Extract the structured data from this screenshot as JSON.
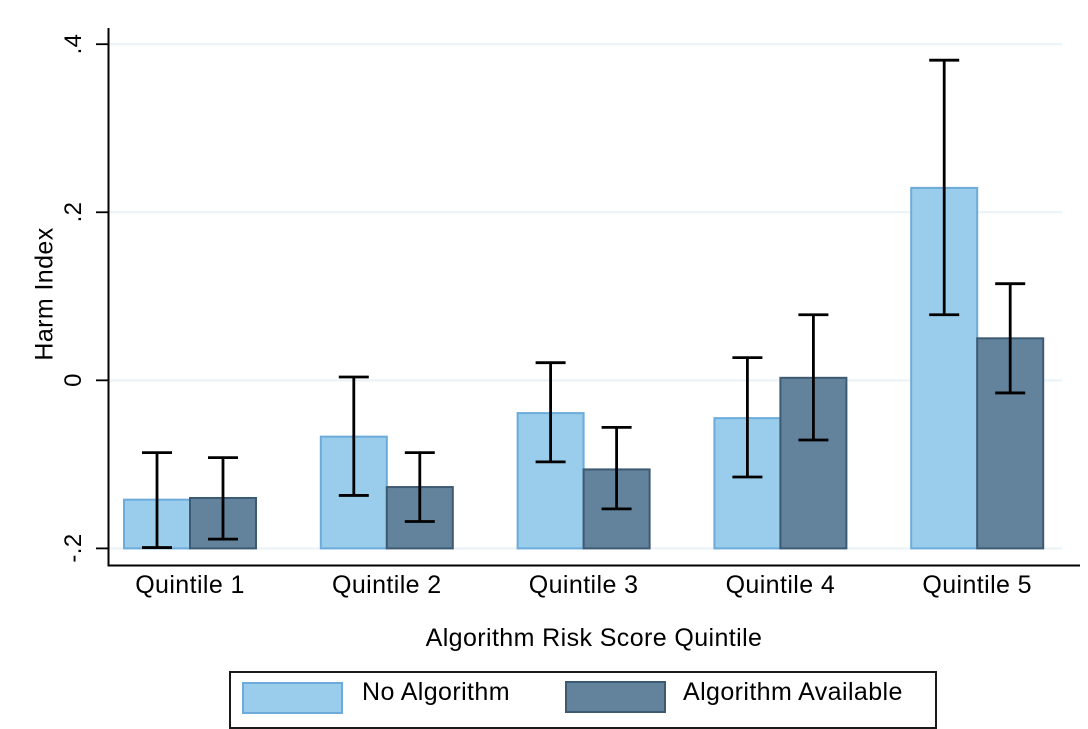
{
  "chart_data": {
    "type": "bar",
    "title": "",
    "xlabel": "Algorithm Risk Score Quintile",
    "ylabel": "Harm Index",
    "categories": [
      "Quintile 1",
      "Quintile 2",
      "Quintile 3",
      "Quintile 4",
      "Quintile 5"
    ],
    "ylim": [
      -0.2,
      0.4
    ],
    "yticks": [
      0.4,
      0.2,
      0,
      -0.2
    ],
    "ytick_labels": [
      ".4",
      ".2",
      "0",
      "-.2"
    ],
    "grid": true,
    "gridline_color": "#e9f2f7",
    "axis_color": "#000000",
    "error_bar_color": "#000000",
    "bar_base": -0.2,
    "legend_position": "bottom",
    "series": [
      {
        "name": "No Algorithm",
        "fill": "#99cdeb",
        "border": "#6cabda",
        "values": [
          -0.142,
          -0.067,
          -0.039,
          -0.045,
          0.229
        ],
        "ci_high": [
          -0.086,
          0.004,
          0.021,
          0.027,
          0.381
        ],
        "ci_low": [
          -0.199,
          -0.137,
          -0.097,
          -0.115,
          0.078
        ]
      },
      {
        "name": "Algorithm Available",
        "fill": "#63829b",
        "border": "#3d5a73",
        "values": [
          -0.14,
          -0.127,
          -0.106,
          0.003,
          0.05
        ],
        "ci_high": [
          -0.092,
          -0.086,
          -0.056,
          0.078,
          0.115
        ],
        "ci_low": [
          -0.189,
          -0.168,
          -0.153,
          -0.071,
          -0.015
        ]
      }
    ]
  }
}
